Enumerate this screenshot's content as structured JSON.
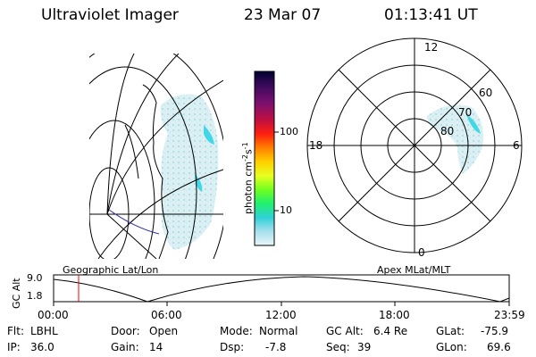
{
  "header": {
    "instrument": "Ultraviolet Imager",
    "date": "23 Mar 07",
    "time": "01:13:41 UT"
  },
  "colorbar": {
    "unit_label": "photon cm",
    "unit_exp1": "-2",
    "unit_mid": "s",
    "unit_exp2": "-1",
    "tick_high": "100",
    "tick_low": "10",
    "colors": [
      "#000033",
      "#3a0a5a",
      "#7a1070",
      "#b01040",
      "#e01010",
      "#ff4000",
      "#ff9000",
      "#ffd000",
      "#f0ff20",
      "#90ff20",
      "#20ff60",
      "#20e0c0",
      "#40c0e0",
      "#a0e0f0",
      "#e0f4f8"
    ]
  },
  "geo_map": {
    "label": "Geographic Lat/Lon",
    "aurora_color": "#b0e8f0",
    "aurora_bright": "#30d0e0"
  },
  "polar_map": {
    "label": "Apex MLat/MLT",
    "mlt_top": "12",
    "mlt_left": "18",
    "mlt_right": "6",
    "mlt_bottom": "0",
    "lat_60": "60",
    "lat_70": "70",
    "lat_80": "80"
  },
  "timeline": {
    "axis_label": "GC Alt",
    "y_max": "9.0",
    "y_min": "1.8",
    "ticks": [
      "00:00",
      "06:00",
      "12:00",
      "18:00",
      "23:59"
    ],
    "current_marker_color": "#ff0000"
  },
  "info": {
    "flt_label": "Flt:",
    "flt_value": "LBHL",
    "ip_label": "IP:",
    "ip_value": "36.0",
    "door_label": "Door:",
    "door_value": "Open",
    "gain_label": "Gain:",
    "gain_value": "14",
    "mode_label": "Mode:",
    "mode_value": "Normal",
    "dsp_label": "Dsp:",
    "dsp_value": "-7.8",
    "gcalt_label": "GC Alt:",
    "gcalt_value": "6.4 Re",
    "seq_label": "Seq:",
    "seq_value": "39",
    "glat_label": "GLat:",
    "glat_value": "-75.9",
    "glon_label": "GLon:",
    "glon_value": "69.6"
  }
}
